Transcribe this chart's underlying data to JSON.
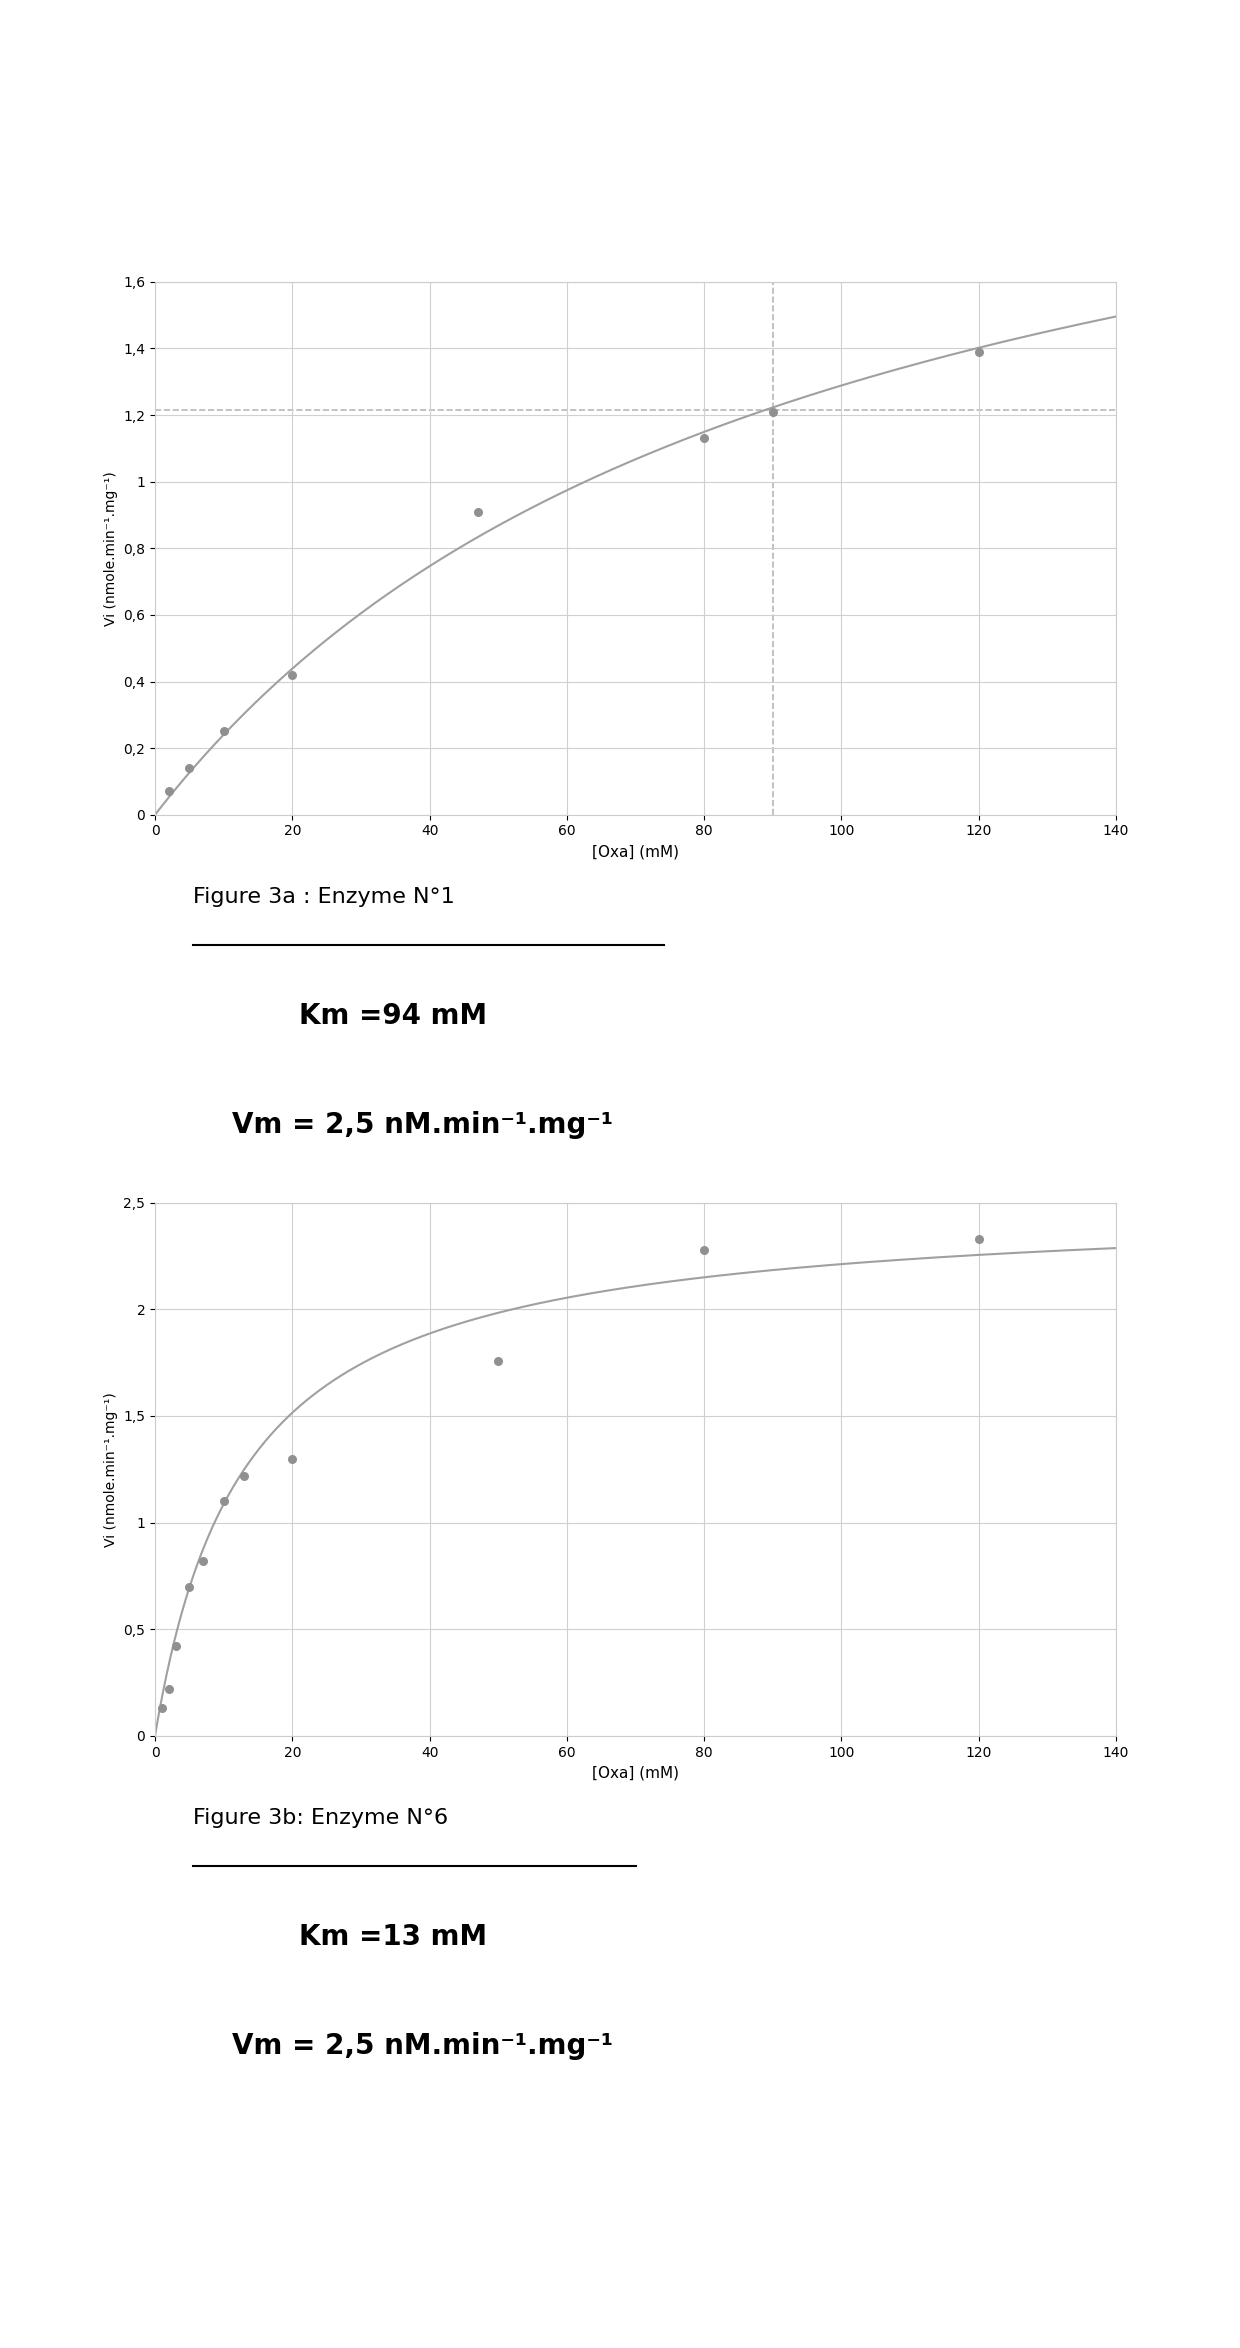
{
  "fig1": {
    "scatter_x": [
      2,
      5,
      10,
      20,
      47,
      80,
      90,
      120
    ],
    "scatter_y": [
      0.07,
      0.14,
      0.25,
      0.42,
      0.91,
      1.13,
      1.21,
      1.39
    ],
    "Km": 94,
    "Vm": 2.5,
    "hline_y": 1.215,
    "vline_x": 90,
    "xlim": [
      0,
      140
    ],
    "ylim": [
      0,
      1.6
    ],
    "xticks": [
      0,
      20,
      40,
      60,
      80,
      100,
      120,
      140
    ],
    "yticks": [
      0,
      0.2,
      0.4,
      0.6,
      0.8,
      1.0,
      1.2,
      1.4,
      1.6
    ],
    "xlabel": "[Oxa] (mM)",
    "ylabel": "Vi (nmole.min⁻¹.mg⁻¹)",
    "caption": "Figure 3a : Enzyme N°1",
    "km_text": "Km =94 mM",
    "vm_text": "Vm = 2,5 nM.min⁻¹.mg⁻¹",
    "underline_xmax": 0.53
  },
  "fig2": {
    "scatter_x": [
      1,
      2,
      3,
      5,
      7,
      10,
      13,
      20,
      50,
      80,
      120
    ],
    "scatter_y": [
      0.13,
      0.22,
      0.42,
      0.7,
      0.82,
      1.1,
      1.22,
      1.3,
      1.76,
      2.28,
      2.33
    ],
    "Km": 13,
    "Vm": 2.5,
    "xlim": [
      0,
      140
    ],
    "ylim": [
      0,
      2.5
    ],
    "xticks": [
      0,
      20,
      40,
      60,
      80,
      100,
      120,
      140
    ],
    "yticks": [
      0,
      0.5,
      1.0,
      1.5,
      2.0,
      2.5
    ],
    "xlabel": "[Oxa] (mM)",
    "ylabel": "Vi (nmole.min⁻¹.mg⁻¹)",
    "caption": "Figure 3b: Enzyme N°6",
    "km_text": "Km =13 mM",
    "vm_text": "Vm = 2,5 nM.min⁻¹.mg⁻¹",
    "underline_xmax": 0.5
  },
  "curve_color": "#a0a0a0",
  "scatter_color": "#909090",
  "hline_color": "#b8b8b8",
  "background_color": "#ffffff",
  "grid_color": "#d0d0d0"
}
